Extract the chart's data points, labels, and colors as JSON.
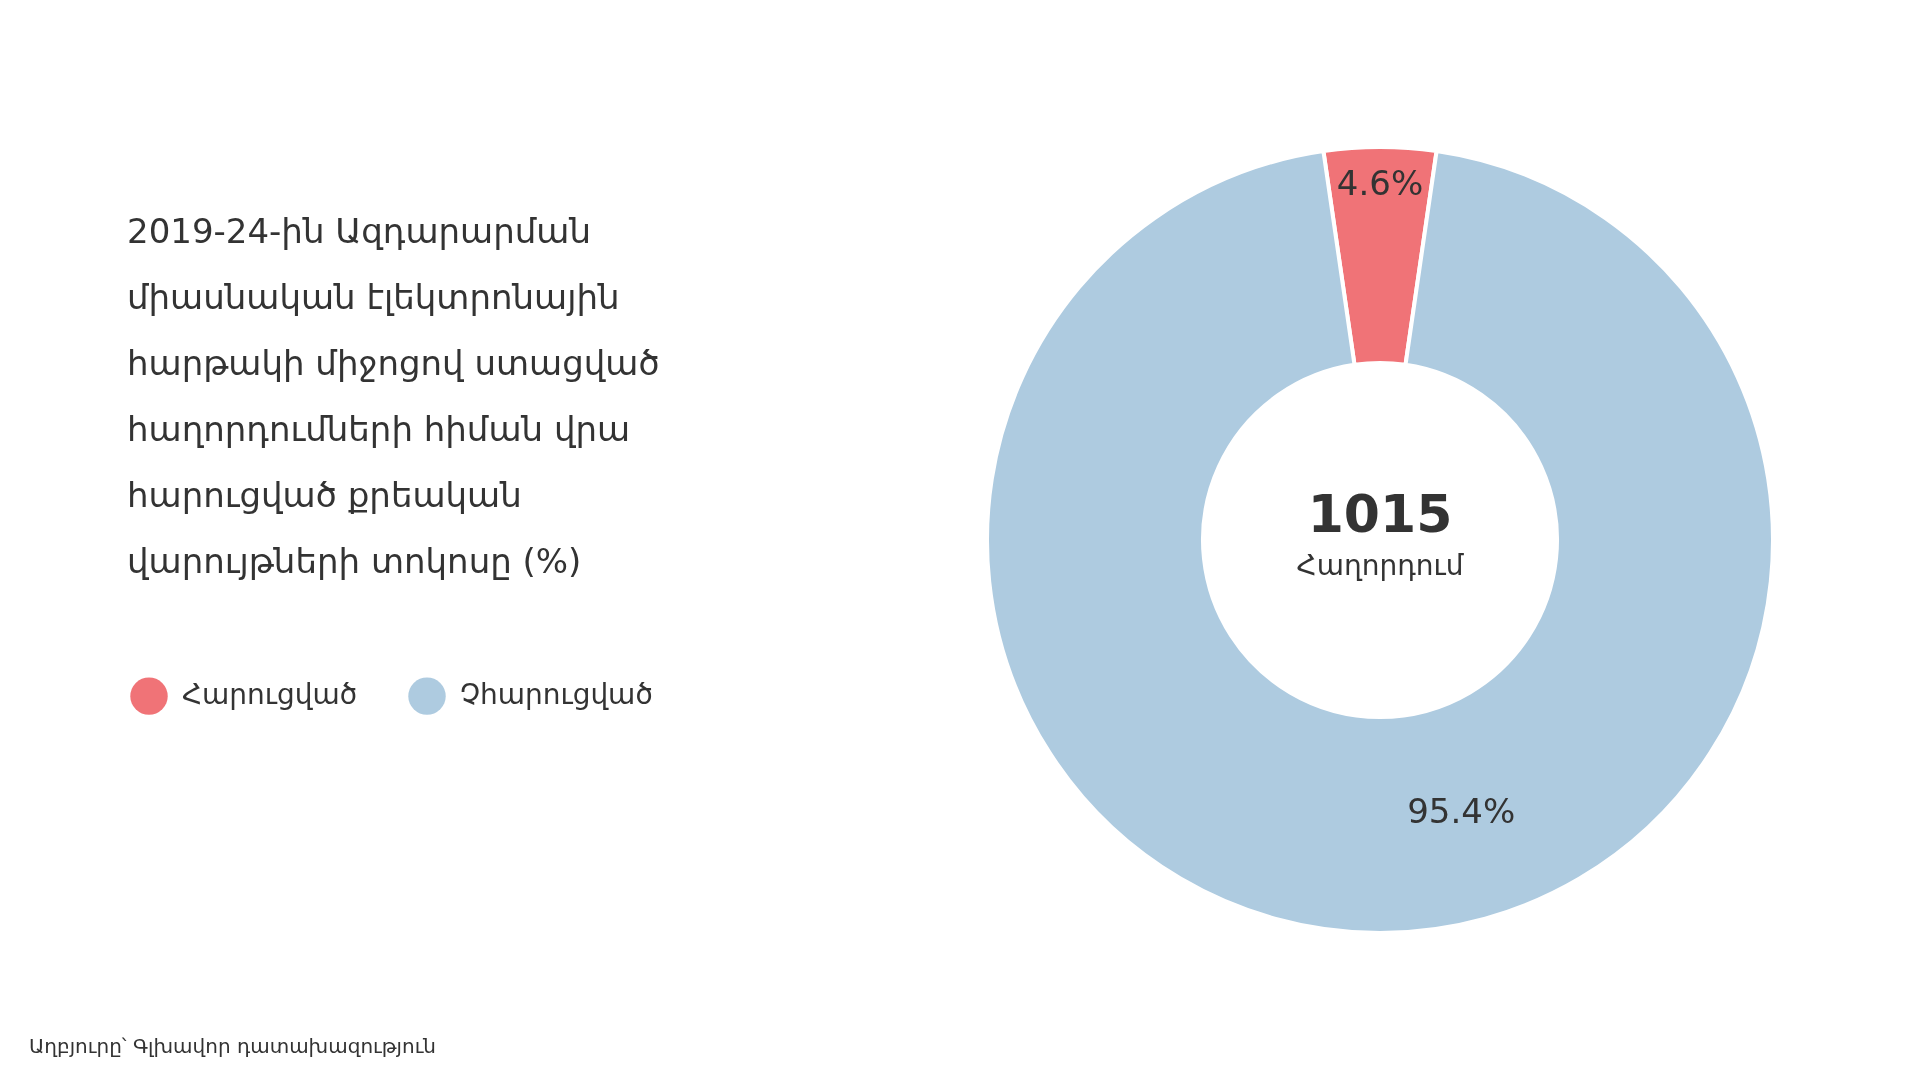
{
  "chart_data": {
    "type": "donut",
    "title": "2019-24-ին Ազդարարման միասնական էլեկտրոնային հարթակի միջոցով ստացված հաղորդումների հիման վրա հարուցված քրեական վարույթների տոկոսը (%)",
    "categories": [
      "Հարուցված",
      "Չհարուցված"
    ],
    "values": [
      4.6,
      95.4
    ],
    "colors": [
      "#f07377",
      "#aecbe0"
    ],
    "value_labels": [
      "4.6%",
      "95.4%"
    ],
    "legend": "left",
    "annotations": [
      "1015",
      "Հաղորդում",
      "Աղբյուրը՝ Գլխավոր դատախազություն"
    ]
  }
}
